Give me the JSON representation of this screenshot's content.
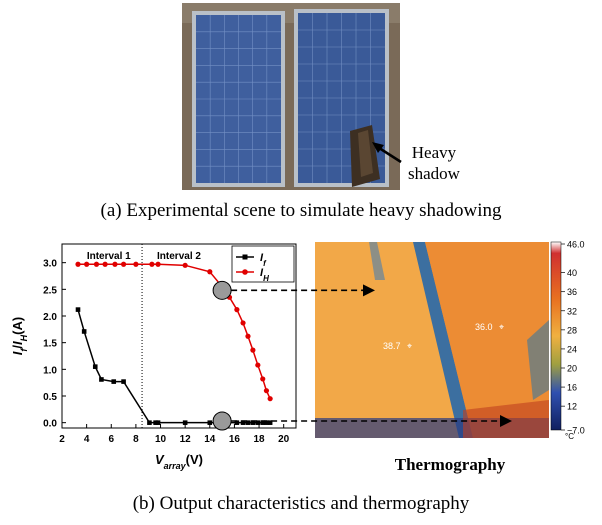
{
  "photo": {
    "label_line1": "Heavy",
    "label_line2": "shadow",
    "caption": "(a) Experimental scene to simulate heavy shadowing"
  },
  "bottom_caption": "(b) Output characteristics and thermography",
  "thermo": {
    "title": "Thermography",
    "spot1": "38.7",
    "spot2": "36.0",
    "scale_ticks": [
      "46.0",
      "40",
      "36",
      "32",
      "28",
      "24",
      "20",
      "16",
      "12",
      "7.0"
    ],
    "scale_values": [
      46.0,
      40,
      36,
      32,
      28,
      24,
      20,
      16,
      12,
      7.0
    ],
    "unit": "°C"
  },
  "chart_data": {
    "type": "line",
    "xlabel_main": "V",
    "xlabel_sub": "array",
    "xlabel_unit": "(V)",
    "ylabel": "I_f/I_H(A)",
    "xlim": [
      2,
      21
    ],
    "ylim": [
      -0.1,
      3.35
    ],
    "xticks": [
      "2",
      "4",
      "6",
      "8",
      "10",
      "12",
      "14",
      "16",
      "18",
      "20"
    ],
    "xtick_values": [
      2,
      4,
      6,
      8,
      10,
      12,
      14,
      16,
      18,
      20
    ],
    "yticks": [
      "0.0",
      "0.5",
      "1.0",
      "1.5",
      "2.0",
      "2.5",
      "3.0"
    ],
    "ytick_values": [
      0,
      0.5,
      1.0,
      1.5,
      2.0,
      2.5,
      3.0
    ],
    "interval_divider": 8.5,
    "interval1_label": "Interval 1",
    "interval2_label": "Interval 2",
    "series": [
      {
        "name": "I_f",
        "color": "#000000",
        "marker": "square",
        "x": [
          3.3,
          3.8,
          4.7,
          5.2,
          6.2,
          7.0,
          9.1,
          9.6,
          9.8,
          12.0,
          14.0,
          15.3,
          16.2,
          16.7,
          17.1,
          17.5,
          17.9,
          18.3,
          18.6,
          18.9
        ],
        "y": [
          2.12,
          1.71,
          1.05,
          0.81,
          0.77,
          0.77,
          0.0,
          0.0,
          0.0,
          0.0,
          0.0,
          0.0,
          0.0,
          0.0,
          0.0,
          0.0,
          0.0,
          0.0,
          0.0,
          0.0
        ]
      },
      {
        "name": "I_H",
        "color": "#e00000",
        "marker": "circle",
        "x": [
          3.3,
          4.0,
          4.8,
          5.5,
          6.3,
          7.0,
          8.0,
          9.3,
          9.8,
          12.0,
          14.0,
          15.0,
          15.6,
          16.2,
          16.7,
          17.1,
          17.5,
          17.9,
          18.3,
          18.6,
          18.9
        ],
        "y": [
          2.97,
          2.97,
          2.97,
          2.97,
          2.97,
          2.97,
          2.97,
          2.97,
          2.97,
          2.95,
          2.83,
          2.55,
          2.35,
          2.12,
          1.87,
          1.62,
          1.36,
          1.08,
          0.82,
          0.6,
          0.45
        ]
      }
    ]
  }
}
